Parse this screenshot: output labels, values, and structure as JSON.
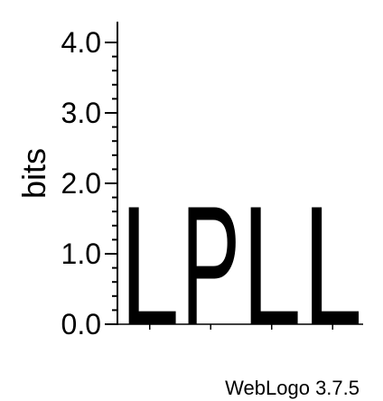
{
  "chart_data": {
    "type": "sequence-logo",
    "ylabel": "bits",
    "ylim": [
      0,
      4
    ],
    "yticks": [
      "0.0",
      "1.0",
      "2.0",
      "3.0",
      "4.0"
    ],
    "positions": [
      {
        "letter": "L",
        "bits": 1.76
      },
      {
        "letter": "P",
        "bits": 1.76
      },
      {
        "letter": "L",
        "bits": 1.76
      },
      {
        "letter": "L",
        "bits": 1.76
      }
    ],
    "colors": {
      "letters": "#000000",
      "axis": "#000000"
    }
  },
  "footer": {
    "text": "WebLogo 3.7.5"
  }
}
